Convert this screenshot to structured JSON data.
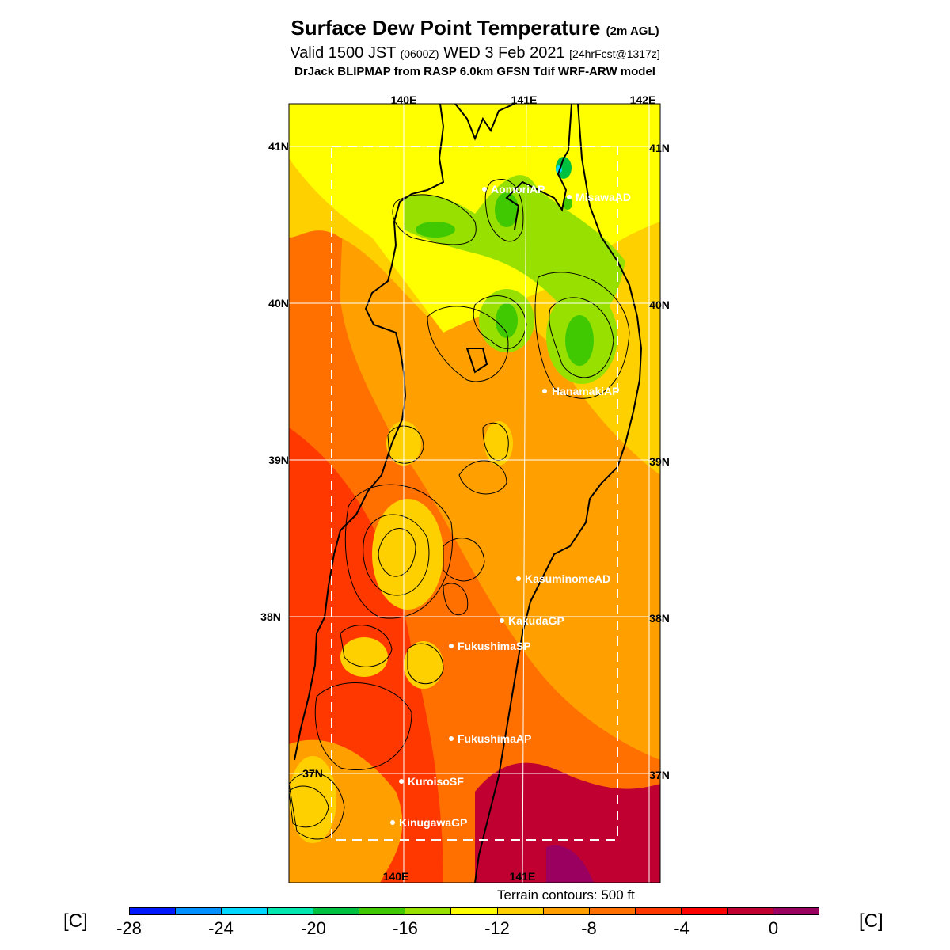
{
  "header": {
    "title": "Surface Dew Point Temperature",
    "title_suffix": "(2m AGL)",
    "valid_prefix": "Valid 1500 JST",
    "valid_utc": "(0600Z)",
    "valid_date": "WED 3 Feb 2021",
    "forecast_info": "[24hrFcst@1317z]",
    "source": "DrJack BLIPMAP from RASP 6.0km GFSN Tdif WRF-ARW model"
  },
  "map": {
    "lon_labels_top": [
      "140E",
      "141E",
      "142E"
    ],
    "lon_labels_bottom": [
      "140E",
      "141E"
    ],
    "lat_labels_left": [
      "41N",
      "40N",
      "39N",
      "38N",
      "37N"
    ],
    "lat_labels_right": [
      "41N",
      "40N",
      "39N",
      "38N",
      "37N"
    ],
    "stations": [
      {
        "name": "AomoriAP"
      },
      {
        "name": "MisawaAD"
      },
      {
        "name": "HanamakiAP"
      },
      {
        "name": "KasuminomeAD"
      },
      {
        "name": "KakudaGP"
      },
      {
        "name": "FukushimaSP"
      },
      {
        "name": "FukushimaAP"
      },
      {
        "name": "KuroisoSF"
      },
      {
        "name": "KinugawaGP"
      }
    ],
    "terrain_note": "Terrain contours: 500 ft"
  },
  "colorbar": {
    "unit": "[C]",
    "labels": [
      "-28",
      "-24",
      "-20",
      "-16",
      "-12",
      "-8",
      "-4",
      "0"
    ],
    "colors": [
      "#0018ff",
      "#0090ff",
      "#00d8ff",
      "#00e8b0",
      "#00c040",
      "#40c800",
      "#98e000",
      "#ffff00",
      "#ffd000",
      "#ffa000",
      "#ff7000",
      "#ff3800",
      "#ff0000",
      "#c00030",
      "#9a0060"
    ]
  }
}
